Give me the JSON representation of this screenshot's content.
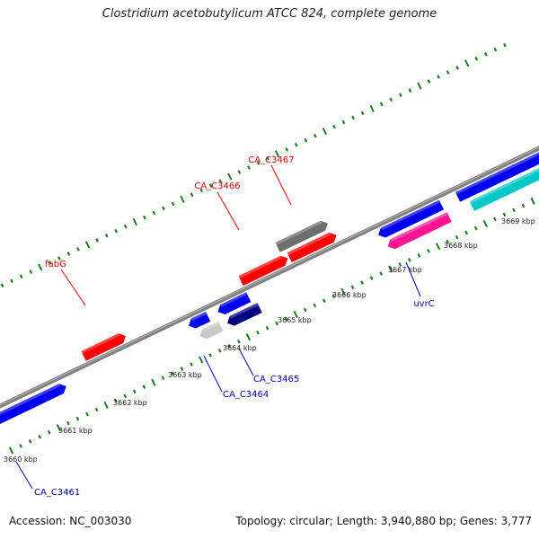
{
  "title": "Clostridium acetobutylicum ATCC 824, complete genome",
  "footer": {
    "accession": "Accession: NC_003030",
    "summary": "Topology: circular; Length: 3,940,880 bp; Genes: 3,777"
  },
  "colors": {
    "backbone": "#808080",
    "ticks": "#1e7d1e",
    "red": "#ff0000",
    "blue": "#0000ee",
    "navy": "#000080",
    "gray": "#6e6e6e",
    "lightgray": "#c8c8c8",
    "magenta": "#ff1493",
    "cyan": "#00c8c8",
    "label_red": "#dd0000",
    "label_blue": "#0000aa"
  },
  "scale": {
    "labels": [
      "3660 kbp",
      "3661 kbp",
      "3662 kbp",
      "3663 kbp",
      "3664 kbp",
      "3665 kbp",
      "3666 kbp",
      "3667 kbp",
      "3668 kbp",
      "3669 kbp"
    ]
  },
  "genes": [
    {
      "color": "red",
      "strand": "+",
      "track": "outer",
      "label": "fabG"
    },
    {
      "color": "red",
      "strand": "+",
      "track": "outer",
      "label": "CA_C3466"
    },
    {
      "color": "red",
      "strand": "+",
      "track": "outer",
      "label": "CA_C3467"
    },
    {
      "color": "gray",
      "strand": "+",
      "track": "outer2",
      "label": ""
    },
    {
      "color": "blue",
      "strand": "+",
      "track": "inner",
      "label": "CA_C3461"
    },
    {
      "color": "blue",
      "strand": "-",
      "track": "inner",
      "label": ""
    },
    {
      "color": "blue",
      "strand": "-",
      "track": "inner",
      "label": ""
    },
    {
      "color": "lightgray",
      "strand": "-",
      "track": "inner2",
      "label": "CA_C3464"
    },
    {
      "color": "navy",
      "strand": "-",
      "track": "inner2",
      "label": "CA_C3465"
    },
    {
      "color": "blue",
      "strand": "-",
      "track": "inner",
      "label": ""
    },
    {
      "color": "magenta",
      "strand": "-",
      "track": "inner2",
      "label": "uvrC"
    },
    {
      "color": "blue",
      "strand": "+",
      "track": "inner",
      "label": ""
    },
    {
      "color": "cyan",
      "strand": "+",
      "track": "inner2",
      "label": ""
    }
  ]
}
